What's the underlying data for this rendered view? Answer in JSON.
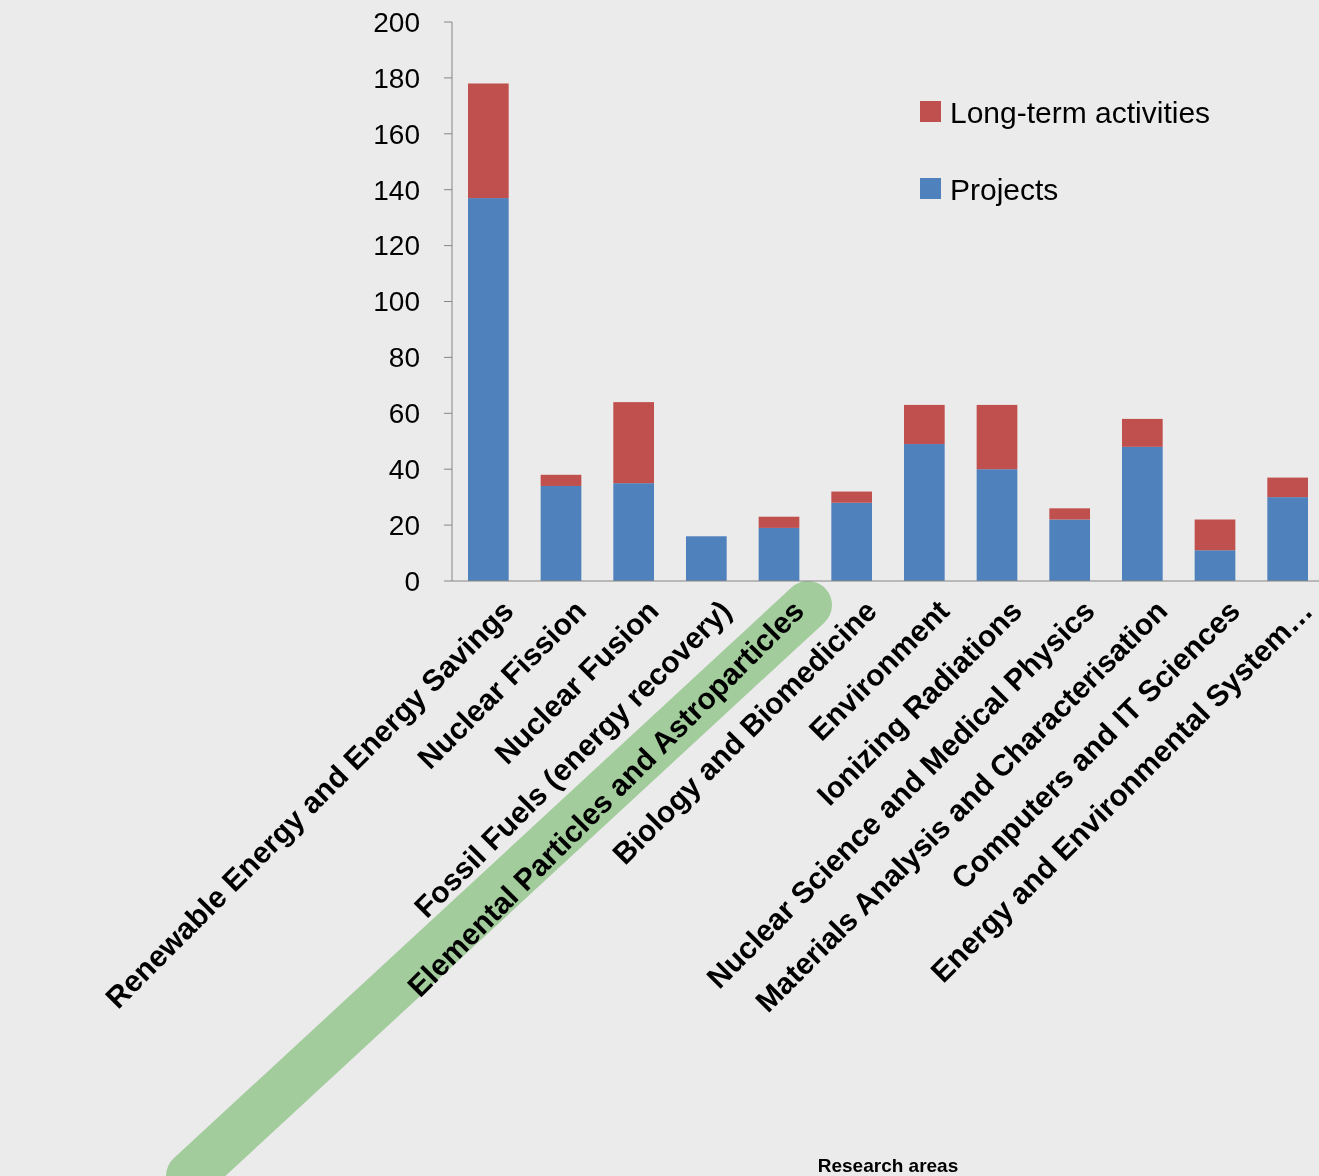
{
  "chart_data": {
    "type": "bar",
    "annotations": [
      "Research areas"
    ],
    "stacked": true,
    "legend": "top right",
    "grid": false,
    "categories": [
      "Renewable Energy and Energy Savings",
      "Nuclear Fission",
      "Nuclear Fusion",
      "Fossil Fuels (energy recovery)",
      "Elemental Particles and Astroparticles",
      "Biology and Biomedicine",
      "Environment",
      "Ionizing Radiations",
      "Nuclear Science and Medical Physics",
      "Materials Analysis and Characterisation",
      "Computers and IT Sciences",
      "Energy and Environmental System…"
    ],
    "series": [
      {
        "name": "Projects",
        "color": "#4f81bd",
        "values": [
          137,
          34,
          35,
          16,
          19,
          28,
          49,
          40,
          22,
          48,
          11,
          30
        ]
      },
      {
        "name": "Long-term activities",
        "color": "#c0504d",
        "values": [
          41,
          4,
          29,
          0,
          4,
          4,
          14,
          23,
          4,
          10,
          11,
          7
        ]
      }
    ],
    "ylim": [
      0,
      200
    ],
    "yticks": [
      0,
      20,
      40,
      60,
      80,
      100,
      120,
      140,
      160,
      180,
      200
    ]
  }
}
